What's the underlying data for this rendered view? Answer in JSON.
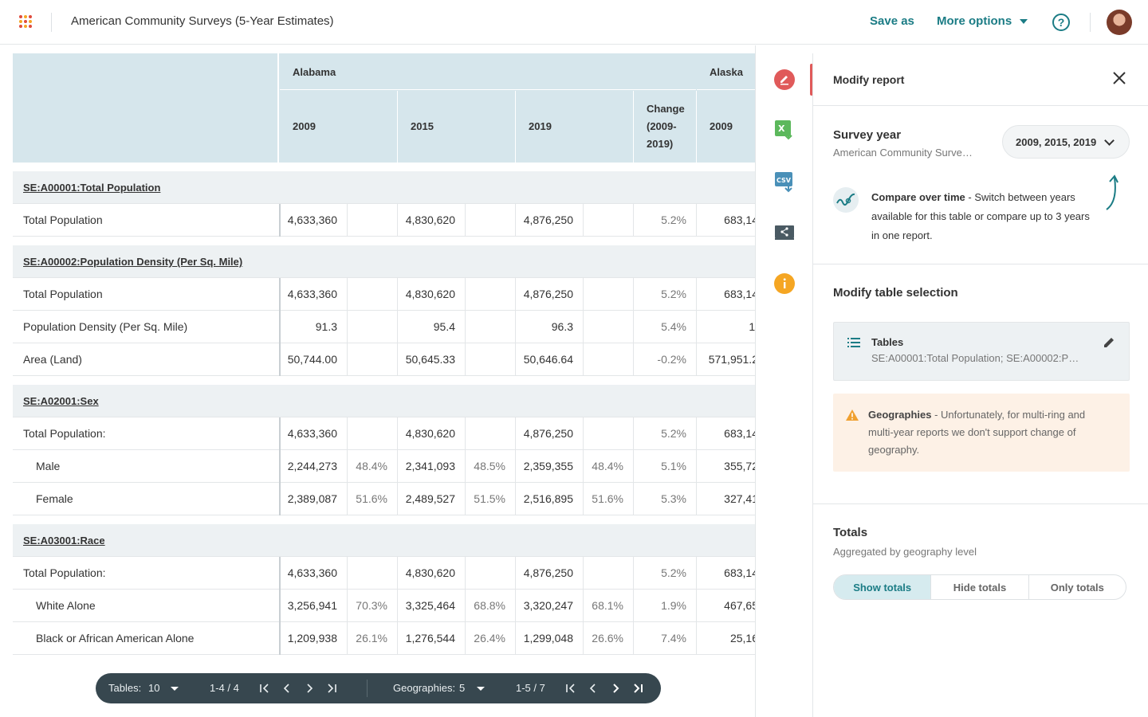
{
  "header": {
    "title": "American Community Surveys (5-Year Estimates)",
    "save_as": "Save as",
    "more_options": "More options",
    "help_icon": "?"
  },
  "table": {
    "states": [
      "Alabama",
      "Alaska"
    ],
    "year_headers": [
      "2009",
      "2015",
      "2019",
      "Change (2009-2019)",
      "2009"
    ],
    "change_header_lines": [
      "Change",
      "(2009-",
      "2019)"
    ],
    "sections": [
      {
        "title": "SE:A00001:Total Population",
        "rows": [
          {
            "label": "Total Population",
            "indent": false,
            "v2009": "4,633,360",
            "p2009": "",
            "v2015": "4,830,620",
            "p2015": "",
            "v2019": "4,876,250",
            "p2019": "",
            "change": "5.2%",
            "alaska": "683,14"
          }
        ]
      },
      {
        "title": "SE:A00002:Population Density (Per Sq. Mile)",
        "rows": [
          {
            "label": "Total Population",
            "indent": false,
            "v2009": "4,633,360",
            "p2009": "",
            "v2015": "4,830,620",
            "p2015": "",
            "v2019": "4,876,250",
            "p2019": "",
            "change": "5.2%",
            "alaska": "683,14"
          },
          {
            "label": "Population Density (Per Sq. Mile)",
            "indent": false,
            "v2009": "91.3",
            "p2009": "",
            "v2015": "95.4",
            "p2015": "",
            "v2019": "96.3",
            "p2019": "",
            "change": "5.4%",
            "alaska": "1."
          },
          {
            "label": "Area (Land)",
            "indent": false,
            "v2009": "50,744.00",
            "p2009": "",
            "v2015": "50,645.33",
            "p2015": "",
            "v2019": "50,646.64",
            "p2019": "",
            "change": "-0.2%",
            "alaska": "571,951.2"
          }
        ]
      },
      {
        "title": "SE:A02001:Sex",
        "rows": [
          {
            "label": "Total Population:",
            "indent": false,
            "v2009": "4,633,360",
            "p2009": "",
            "v2015": "4,830,620",
            "p2015": "",
            "v2019": "4,876,250",
            "p2019": "",
            "change": "5.2%",
            "alaska": "683,14"
          },
          {
            "label": "Male",
            "indent": true,
            "v2009": "2,244,273",
            "p2009": "48.4%",
            "v2015": "2,341,093",
            "p2015": "48.5%",
            "v2019": "2,359,355",
            "p2019": "48.4%",
            "change": "5.1%",
            "alaska": "355,72"
          },
          {
            "label": "Female",
            "indent": true,
            "v2009": "2,389,087",
            "p2009": "51.6%",
            "v2015": "2,489,527",
            "p2015": "51.5%",
            "v2019": "2,516,895",
            "p2019": "51.6%",
            "change": "5.3%",
            "alaska": "327,41"
          }
        ]
      },
      {
        "title": "SE:A03001:Race",
        "rows": [
          {
            "label": "Total Population:",
            "indent": false,
            "v2009": "4,633,360",
            "p2009": "",
            "v2015": "4,830,620",
            "p2015": "",
            "v2019": "4,876,250",
            "p2019": "",
            "change": "5.2%",
            "alaska": "683,14"
          },
          {
            "label": "White Alone",
            "indent": true,
            "v2009": "3,256,941",
            "p2009": "70.3%",
            "v2015": "3,325,464",
            "p2015": "68.8%",
            "v2019": "3,320,247",
            "p2019": "68.1%",
            "change": "1.9%",
            "alaska": "467,65"
          },
          {
            "label": "Black or African American Alone",
            "indent": true,
            "v2009": "1,209,938",
            "p2009": "26.1%",
            "v2015": "1,276,544",
            "p2015": "26.4%",
            "v2019": "1,299,048",
            "p2019": "26.6%",
            "change": "7.4%",
            "alaska": "25,16"
          }
        ]
      }
    ]
  },
  "toolbar": {
    "icons": [
      "edit-report-icon",
      "excel-export-icon",
      "csv-export-icon",
      "share-icon",
      "info-icon"
    ]
  },
  "panel": {
    "title": "Modify report",
    "survey_year": {
      "title": "Survey year",
      "subtitle": "American Community Surve…",
      "selected": "2009, 2015, 2019"
    },
    "compare": {
      "bold": "Compare over time",
      "text": " - Switch between years available for this table or compare up to 3 years in one report."
    },
    "table_selection": {
      "title": "Modify table selection",
      "box_title": "Tables",
      "box_value": "SE:A00001:Total Population; SE:A00002:Po…"
    },
    "warning": {
      "bold": "Geographies",
      "text": " - Unfortunately, for multi-ring and multi-year reports we don't support change of geography."
    },
    "totals": {
      "title": "Totals",
      "subtitle": "Aggregated by geography level",
      "options": [
        "Show totals",
        "Hide totals",
        "Only totals"
      ],
      "selected": "Show totals"
    }
  },
  "pager": {
    "tables_label": "Tables:",
    "tables_value": "10",
    "tables_range": "1-4 / 4",
    "geo_label": "Geographies:",
    "geo_value": "5",
    "geo_range": "1-5 / 7"
  },
  "colors": {
    "accent": "#1b7c85",
    "header_bg": "#d6e6ec",
    "group_bg": "#edf1f3",
    "pager_bg": "#37474f",
    "warning_bg": "#fdf1e6"
  }
}
